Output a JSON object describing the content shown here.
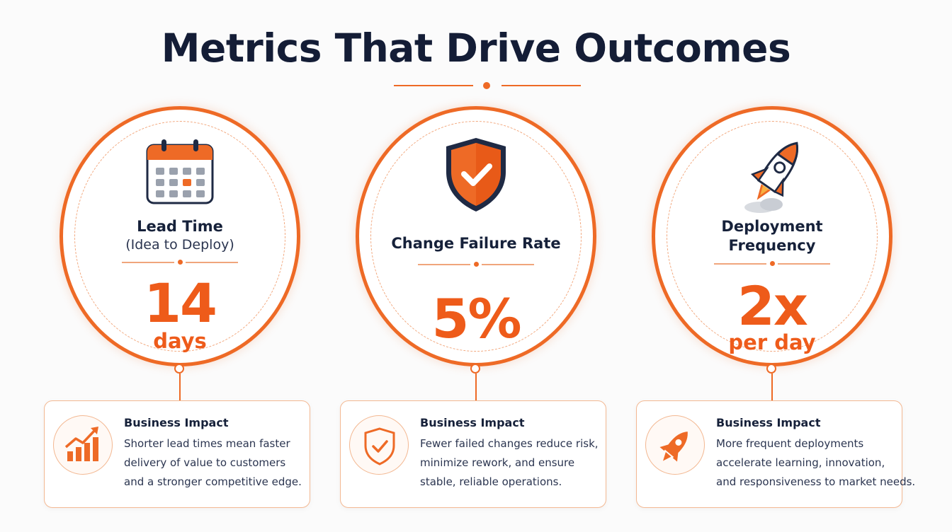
{
  "title": "Metrics That Drive Outcomes",
  "accent_color": "#ee6a26",
  "metrics": [
    {
      "icon": "calendar-icon",
      "label": "Lead Time",
      "sublabel": "(Idea to Deploy)",
      "value": "14",
      "unit": "days",
      "impact": {
        "icon": "growth-chart-icon",
        "title": "Business Impact",
        "lines": [
          "Shorter lead times mean faster",
          "delivery of value to customers",
          "and a stronger competitive edge."
        ]
      }
    },
    {
      "icon": "shield-check-icon",
      "label": "Change Failure Rate",
      "sublabel": "",
      "value": "5%",
      "unit": "",
      "impact": {
        "icon": "shield-check-outline-icon",
        "title": "Business Impact",
        "lines": [
          "Fewer failed changes reduce risk,",
          "minimize rework, and ensure",
          "stable, reliable operations."
        ]
      }
    },
    {
      "icon": "rocket-icon",
      "label": "Deployment",
      "label_line2": "Frequency",
      "sublabel": "",
      "value": "2x",
      "unit": "per day",
      "impact": {
        "icon": "rocket-small-icon",
        "title": "Business Impact",
        "lines": [
          "More frequent deployments",
          "accelerate learning, innovation,",
          "and responsiveness to market needs."
        ]
      }
    }
  ]
}
